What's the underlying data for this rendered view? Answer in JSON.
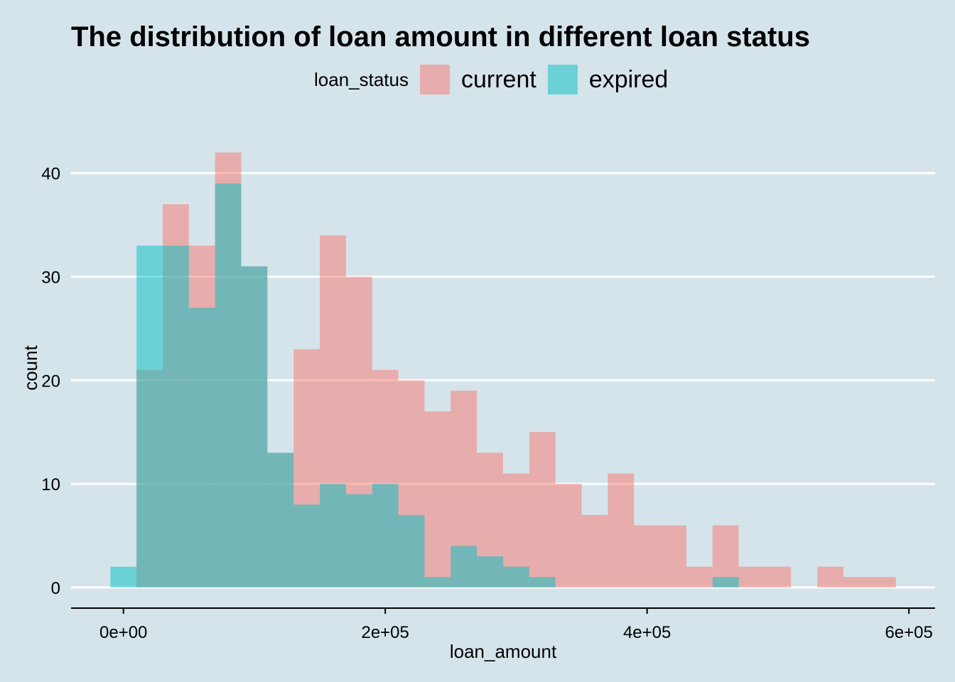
{
  "chart_data": {
    "type": "bar",
    "title": "The distribution of loan amount in different loan status",
    "xlabel": "loan_amount",
    "ylabel": "count",
    "xlim": [
      -40000,
      620000
    ],
    "ylim": [
      -2,
      43
    ],
    "x_ticks": [
      {
        "value": 0,
        "label": "0e+00"
      },
      {
        "value": 200000,
        "label": "2e+05"
      },
      {
        "value": 400000,
        "label": "4e+05"
      },
      {
        "value": 600000,
        "label": "6e+05"
      }
    ],
    "y_ticks": [
      {
        "value": 0,
        "label": "0"
      },
      {
        "value": 10,
        "label": "10"
      },
      {
        "value": 20,
        "label": "20"
      },
      {
        "value": 30,
        "label": "30"
      },
      {
        "value": 40,
        "label": "40"
      }
    ],
    "grid": "horizontal",
    "bin_width": 20000,
    "bin_starts": [
      -10000,
      10000,
      30000,
      50000,
      70000,
      90000,
      110000,
      130000,
      150000,
      170000,
      190000,
      210000,
      230000,
      250000,
      270000,
      290000,
      310000,
      330000,
      350000,
      370000,
      390000,
      410000,
      430000,
      450000,
      470000,
      490000,
      510000,
      530000,
      550000,
      570000
    ],
    "legend": {
      "title": "loan_status",
      "position": "top"
    },
    "series": [
      {
        "name": "current",
        "color": "#f8766d",
        "opacity": 0.5,
        "values": [
          0,
          21,
          37,
          33,
          42,
          31,
          13,
          23,
          34,
          30,
          21,
          20,
          17,
          19,
          13,
          11,
          15,
          10,
          7,
          11,
          6,
          6,
          2,
          6,
          2,
          2,
          0,
          2,
          1,
          1
        ]
      },
      {
        "name": "expired",
        "color": "#00bfc4",
        "opacity": 0.5,
        "values": [
          2,
          33,
          33,
          27,
          39,
          31,
          13,
          8,
          10,
          9,
          10,
          7,
          1,
          4,
          3,
          2,
          1,
          0,
          0,
          0,
          0,
          0,
          0,
          1,
          0,
          0,
          0,
          0,
          0,
          0
        ]
      }
    ]
  }
}
